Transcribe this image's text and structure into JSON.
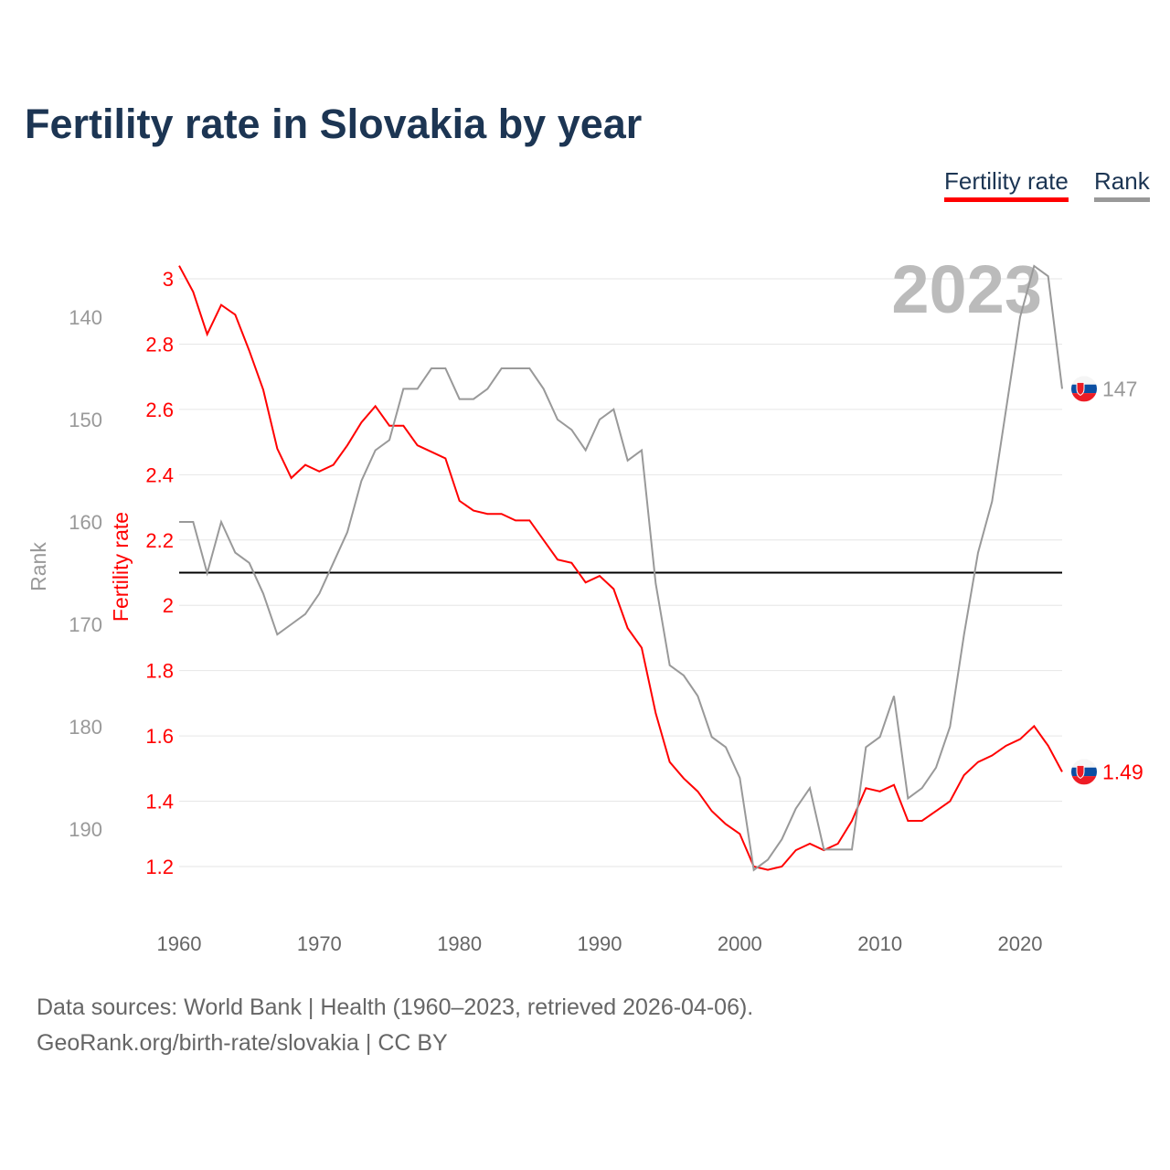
{
  "title": "Fertility rate in Slovakia by year",
  "legend": {
    "fertility": "Fertility rate",
    "rank": "Rank"
  },
  "footer": {
    "line1": "Data sources: World Bank | Health (1960–2023, retrieved 2026-04-06).",
    "line2": "GeoRank.org/birth-rate/slovakia | CC BY"
  },
  "colors": {
    "fertility": "#ff0000",
    "rank": "#999999",
    "title": "#1c3553"
  },
  "chart_data": {
    "type": "line",
    "title": "Fertility rate in Slovakia by year",
    "year_label": "2023",
    "x": [
      1960,
      1961,
      1962,
      1963,
      1964,
      1965,
      1966,
      1967,
      1968,
      1969,
      1970,
      1971,
      1972,
      1973,
      1974,
      1975,
      1976,
      1977,
      1978,
      1979,
      1980,
      1981,
      1982,
      1983,
      1984,
      1985,
      1986,
      1987,
      1988,
      1989,
      1990,
      1991,
      1992,
      1993,
      1994,
      1995,
      1996,
      1997,
      1998,
      1999,
      2000,
      2001,
      2002,
      2003,
      2004,
      2005,
      2006,
      2007,
      2008,
      2009,
      2010,
      2011,
      2012,
      2013,
      2014,
      2015,
      2016,
      2017,
      2018,
      2019,
      2020,
      2021,
      2022,
      2023
    ],
    "xticks": [
      "1960",
      "1970",
      "1980",
      "1990",
      "2000",
      "2010",
      "2020"
    ],
    "xlim": [
      1960,
      2023
    ],
    "series": [
      {
        "name": "Fertility rate",
        "axis": "left",
        "color": "#ff0000",
        "values": [
          3.04,
          2.96,
          2.83,
          2.92,
          2.89,
          2.78,
          2.66,
          2.48,
          2.39,
          2.43,
          2.41,
          2.43,
          2.49,
          2.56,
          2.61,
          2.55,
          2.55,
          2.49,
          2.47,
          2.45,
          2.32,
          2.29,
          2.28,
          2.28,
          2.26,
          2.26,
          2.2,
          2.14,
          2.13,
          2.07,
          2.09,
          2.05,
          1.93,
          1.87,
          1.67,
          1.52,
          1.47,
          1.43,
          1.37,
          1.33,
          1.3,
          1.2,
          1.19,
          1.2,
          1.25,
          1.27,
          1.25,
          1.27,
          1.34,
          1.44,
          1.43,
          1.45,
          1.34,
          1.34,
          1.37,
          1.4,
          1.48,
          1.52,
          1.54,
          1.57,
          1.59,
          1.63,
          1.57,
          1.49
        ],
        "end_label": "1.49"
      },
      {
        "name": "Rank",
        "axis": "right-inverted",
        "color": "#999999",
        "values": [
          160,
          160,
          165,
          160,
          163,
          164,
          167,
          171,
          170,
          169,
          167,
          164,
          161,
          156,
          153,
          152,
          147,
          147,
          145,
          145,
          148,
          148,
          147,
          145,
          145,
          145,
          147,
          150,
          151,
          153,
          150,
          149,
          154,
          153,
          166,
          174,
          175,
          177,
          181,
          182,
          185,
          194,
          193,
          191,
          188,
          186,
          192,
          192,
          192,
          182,
          181,
          177,
          187,
          186,
          184,
          180,
          171,
          163,
          158,
          149,
          140,
          135,
          136,
          147
        ],
        "end_label": "147"
      }
    ],
    "ylabel_fertility": "Fertility rate",
    "ylabel_rank": "Rank",
    "fertility_ticks": [
      "1.2",
      "1.4",
      "1.6",
      "1.8",
      "2",
      "2.2",
      "2.4",
      "2.6",
      "2.8",
      "3"
    ],
    "rank_ticks": [
      "140",
      "150",
      "160",
      "170",
      "180",
      "190"
    ],
    "fertility_ylim": [
      1.2,
      3
    ],
    "rank_ylim": [
      140,
      190
    ],
    "reference_line": {
      "value": 2.1,
      "axis": "fertility"
    },
    "grid": true,
    "legend_position": "top-right"
  }
}
